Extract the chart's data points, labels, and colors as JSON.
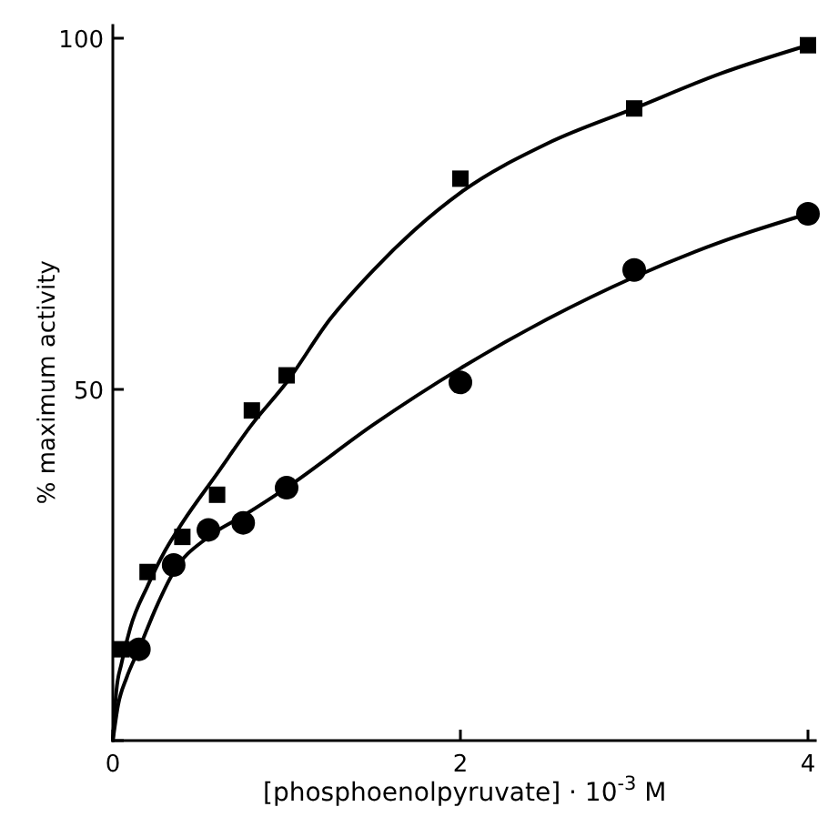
{
  "chart_data": {
    "type": "scatter",
    "xlabel": "[phosphoenolpyruvate] · 10$^{-3}$ M",
    "ylabel": "% maximum activity",
    "xlim": [
      0,
      4.05
    ],
    "ylim": [
      0,
      102
    ],
    "xticks": [
      0,
      2,
      4
    ],
    "yticks": [
      {
        "value": 0,
        "label": null
      },
      50,
      100
    ],
    "grid": false,
    "series": [
      {
        "type": "line",
        "marker": "none",
        "line_style": "solid",
        "color": "#000000",
        "x": [
          0,
          0.02,
          0.05,
          0.1,
          0.2,
          0.3,
          0.4,
          0.6,
          0.8,
          1,
          1.25,
          1.5,
          1.75,
          2,
          2.5,
          3,
          3.5,
          4
        ],
        "values": [
          0,
          7,
          11,
          16,
          22,
          27,
          31,
          38,
          45,
          51,
          60,
          67,
          73,
          78,
          85,
          90,
          95,
          99
        ]
      },
      {
        "type": "line",
        "marker": "none",
        "line_style": "solid",
        "color": "#000000",
        "x": [
          0,
          0.03,
          0.08,
          0.15,
          0.25,
          0.35,
          0.55,
          0.75,
          1,
          1.5,
          2,
          2.5,
          3,
          3.5,
          4
        ],
        "values": [
          0,
          5,
          9,
          13,
          19,
          24,
          29,
          32,
          36,
          45,
          53,
          60,
          66,
          71,
          75
        ]
      },
      {
        "marker": "square",
        "color": "#000000",
        "x": [
          0.05,
          0.2,
          0.4,
          0.6,
          0.8,
          1,
          2,
          3,
          4
        ],
        "values": [
          13,
          24,
          29,
          35,
          47,
          52,
          80,
          90,
          99
        ]
      },
      {
        "marker": "circle",
        "color": "#000000",
        "x": [
          0.15,
          0.35,
          0.55,
          0.75,
          1,
          2,
          3,
          4
        ],
        "values": [
          13,
          25,
          30,
          31,
          36,
          51,
          67,
          75
        ]
      }
    ]
  }
}
